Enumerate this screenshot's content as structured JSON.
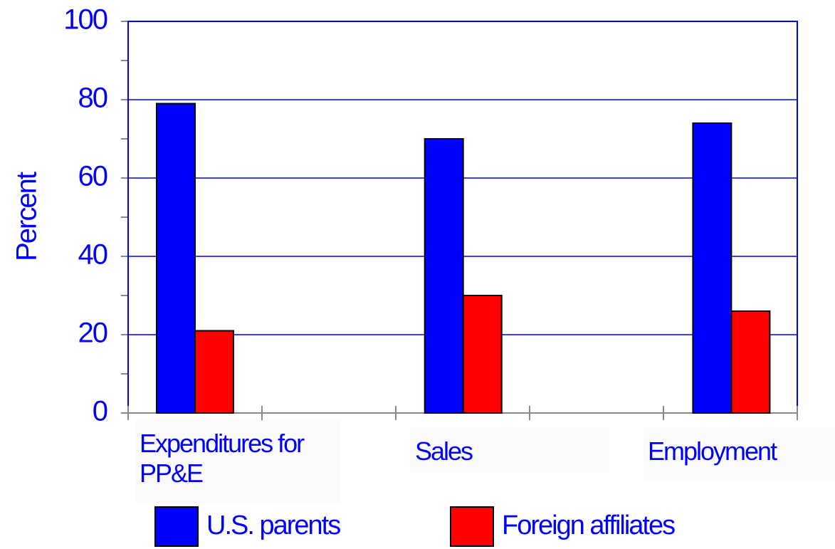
{
  "chart_data": {
    "type": "bar",
    "y_label": "Percent",
    "categories": [
      "Expenditures for PP&E",
      "Sales",
      "Employment"
    ],
    "series": [
      {
        "name": "U.S. parents",
        "color": "#0000ff",
        "values": [
          79,
          70,
          74
        ]
      },
      {
        "name": "Foreign affiliates",
        "color": "#ff0000",
        "values": [
          21,
          30,
          26
        ]
      }
    ],
    "ylim": [
      0,
      100
    ],
    "yticks": [
      0,
      20,
      40,
      60,
      80,
      100
    ],
    "grid": true,
    "legend": "bottom"
  }
}
